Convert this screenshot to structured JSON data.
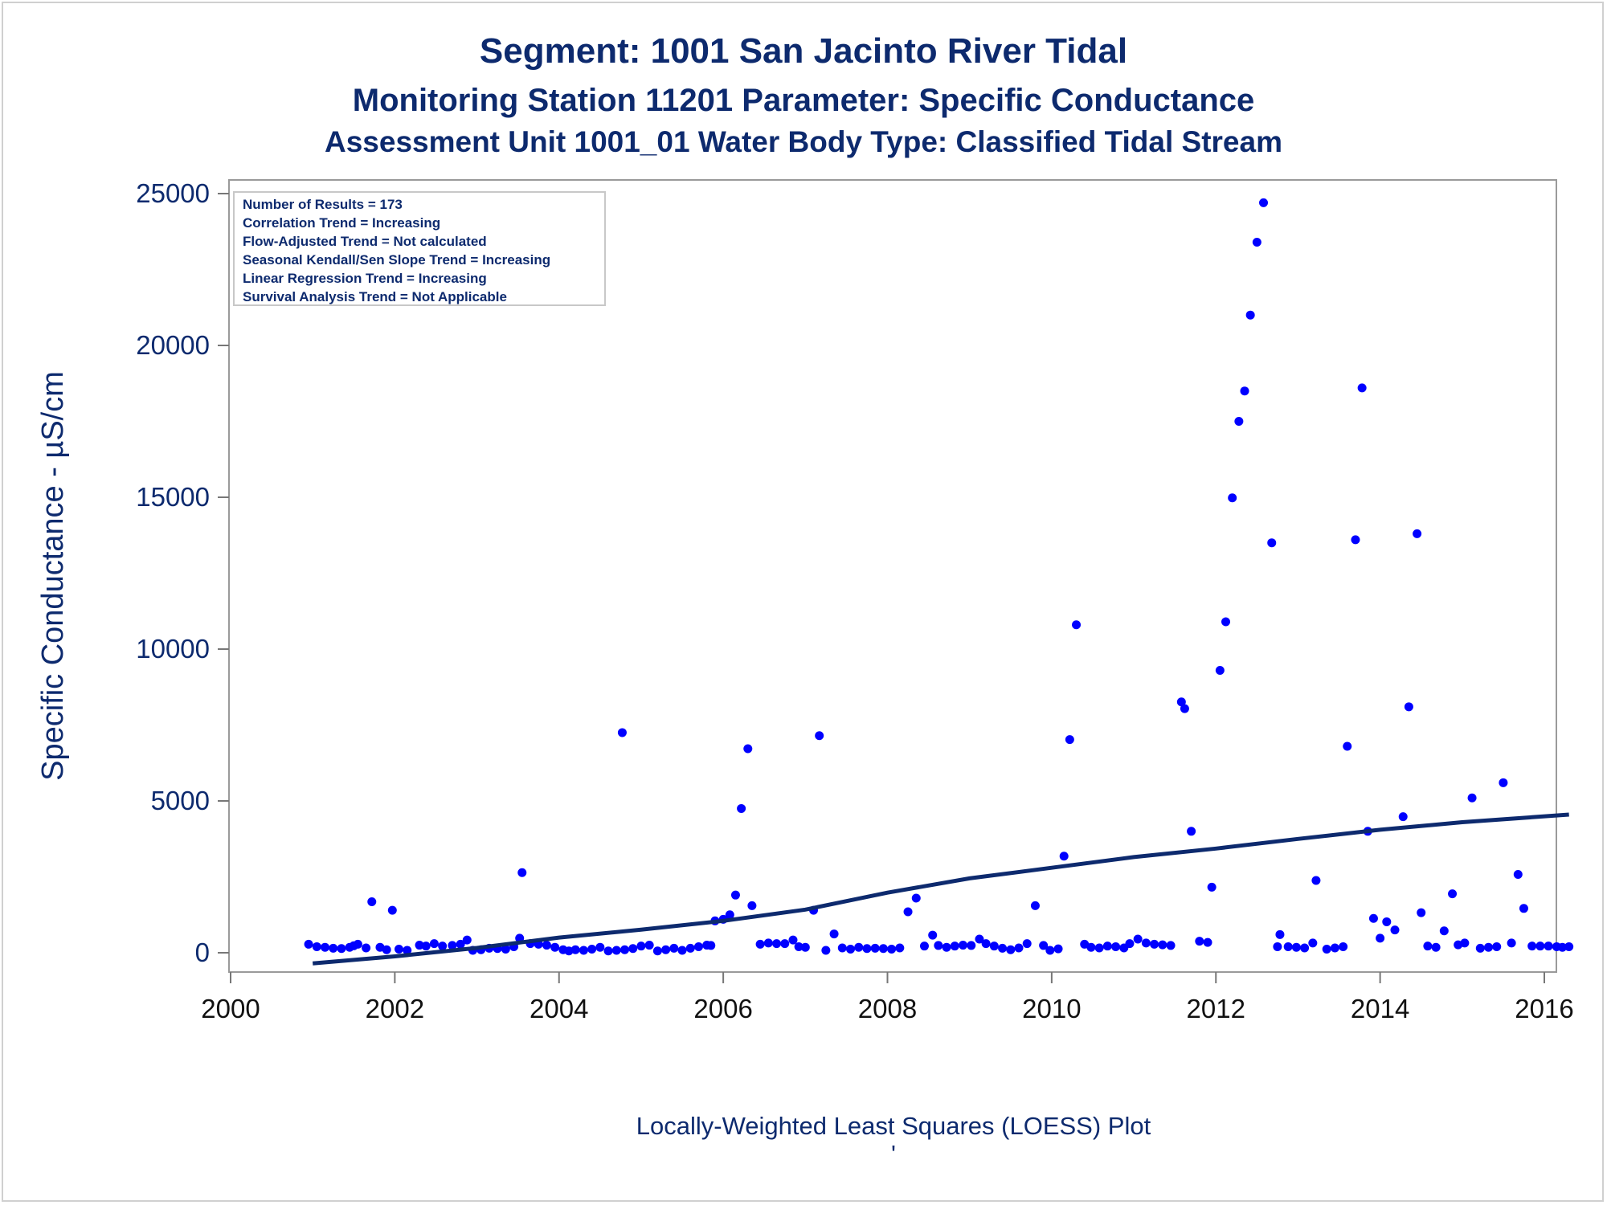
{
  "chart_data": {
    "type": "scatter",
    "title": "Segment: 1001  San Jacinto River Tidal",
    "subtitle": "Monitoring Station 11201 Parameter: Specific Conductance",
    "subtitle2": "Assessment Unit 1001_01   Water Body Type: Classified Tidal Stream",
    "ylabel": "Specific Conductance -  µS/cm",
    "xlabel": "",
    "footnote": "Locally-Weighted Least Squares (LOESS) Plot",
    "footnote2": "'",
    "xlim": [
      2000,
      2016
    ],
    "ylim": [
      -600,
      25500
    ],
    "x_ticks": [
      2000,
      2002,
      2004,
      2006,
      2008,
      2010,
      2012,
      2014,
      2016
    ],
    "y_ticks": [
      0,
      5000,
      10000,
      15000,
      20000,
      25000
    ],
    "grid": false,
    "legend": "none",
    "inset_text": [
      "Number of Results = 173",
      "Correlation Trend = Increasing",
      "Flow-Adjusted Trend = Not calculated",
      "Seasonal Kendall/Sen Slope Trend = Increasing",
      "Linear Regression Trend = Increasing",
      "Survival Analysis Trend = Not Applicable"
    ],
    "inset_position": "top-left",
    "point_color": "#0000ff",
    "line_color": "#0d2a6e",
    "series": [
      {
        "type": "scatter",
        "points": [
          [
            2000.95,
            280
          ],
          [
            2001.05,
            200
          ],
          [
            2001.15,
            180
          ],
          [
            2001.25,
            150
          ],
          [
            2001.35,
            140
          ],
          [
            2001.45,
            180
          ],
          [
            2001.55,
            280
          ],
          [
            2001.65,
            160
          ],
          [
            2001.72,
            1680
          ],
          [
            2001.82,
            180
          ],
          [
            2001.9,
            100
          ],
          [
            2001.97,
            1400
          ],
          [
            2002.05,
            120
          ],
          [
            2002.15,
            80
          ],
          [
            2002.3,
            250
          ],
          [
            2002.38,
            220
          ],
          [
            2002.48,
            300
          ],
          [
            2002.58,
            220
          ],
          [
            2002.7,
            240
          ],
          [
            2002.8,
            280
          ],
          [
            2002.88,
            420
          ],
          [
            2002.95,
            80
          ],
          [
            2003.05,
            100
          ],
          [
            2003.15,
            150
          ],
          [
            2003.25,
            140
          ],
          [
            2003.35,
            120
          ],
          [
            2003.45,
            200
          ],
          [
            2003.52,
            480
          ],
          [
            2003.55,
            2640
          ],
          [
            2003.65,
            300
          ],
          [
            2003.75,
            280
          ],
          [
            2003.85,
            250
          ],
          [
            2003.95,
            180
          ],
          [
            2004.05,
            100
          ],
          [
            2004.12,
            60
          ],
          [
            2004.2,
            100
          ],
          [
            2004.3,
            80
          ],
          [
            2004.4,
            120
          ],
          [
            2004.5,
            180
          ],
          [
            2004.6,
            60
          ],
          [
            2004.7,
            80
          ],
          [
            2004.8,
            100
          ],
          [
            2004.9,
            140
          ],
          [
            2005.0,
            220
          ],
          [
            2004.77,
            7250
          ],
          [
            2005.1,
            250
          ],
          [
            2005.2,
            60
          ],
          [
            2005.3,
            100
          ],
          [
            2005.4,
            150
          ],
          [
            2005.5,
            80
          ],
          [
            2005.6,
            150
          ],
          [
            2005.7,
            200
          ],
          [
            2005.8,
            250
          ],
          [
            2005.9,
            1050
          ],
          [
            2006.0,
            1100
          ],
          [
            2006.08,
            1250
          ],
          [
            2006.15,
            1900
          ],
          [
            2006.22,
            4750
          ],
          [
            2006.3,
            6720
          ],
          [
            2006.35,
            1550
          ],
          [
            2006.45,
            280
          ],
          [
            2006.55,
            320
          ],
          [
            2006.65,
            300
          ],
          [
            2006.75,
            300
          ],
          [
            2006.85,
            420
          ],
          [
            2006.92,
            200
          ],
          [
            2007.0,
            180
          ],
          [
            2007.1,
            1400
          ],
          [
            2007.17,
            7150
          ],
          [
            2007.25,
            80
          ],
          [
            2007.35,
            620
          ],
          [
            2007.45,
            160
          ],
          [
            2007.55,
            120
          ],
          [
            2007.65,
            180
          ],
          [
            2007.75,
            140
          ],
          [
            2007.85,
            150
          ],
          [
            2007.95,
            140
          ],
          [
            2008.05,
            120
          ],
          [
            2008.15,
            160
          ],
          [
            2008.25,
            1350
          ],
          [
            2008.35,
            1800
          ],
          [
            2008.45,
            220
          ],
          [
            2008.55,
            580
          ],
          [
            2008.62,
            240
          ],
          [
            2008.72,
            180
          ],
          [
            2008.82,
            220
          ],
          [
            2008.92,
            250
          ],
          [
            2009.02,
            240
          ],
          [
            2009.12,
            450
          ],
          [
            2009.2,
            300
          ],
          [
            2009.3,
            220
          ],
          [
            2009.4,
            150
          ],
          [
            2009.5,
            100
          ],
          [
            2009.6,
            160
          ],
          [
            2009.7,
            300
          ],
          [
            2009.8,
            1550
          ],
          [
            2009.9,
            240
          ],
          [
            2009.98,
            80
          ],
          [
            2010.08,
            130
          ],
          [
            2010.15,
            3180
          ],
          [
            2010.22,
            7020
          ],
          [
            2010.3,
            10800
          ],
          [
            2010.4,
            280
          ],
          [
            2010.48,
            180
          ],
          [
            2010.58,
            160
          ],
          [
            2010.68,
            220
          ],
          [
            2010.78,
            200
          ],
          [
            2010.88,
            160
          ],
          [
            2010.95,
            300
          ],
          [
            2011.05,
            450
          ],
          [
            2011.15,
            320
          ],
          [
            2011.25,
            280
          ],
          [
            2011.35,
            260
          ],
          [
            2011.45,
            240
          ],
          [
            2011.58,
            8260
          ],
          [
            2011.62,
            8040
          ],
          [
            2011.7,
            4000
          ],
          [
            2011.8,
            380
          ],
          [
            2011.9,
            340
          ],
          [
            2011.95,
            2160
          ],
          [
            2012.05,
            9300
          ],
          [
            2012.12,
            10900
          ],
          [
            2012.2,
            14980
          ],
          [
            2012.28,
            17500
          ],
          [
            2012.35,
            18500
          ],
          [
            2012.42,
            21000
          ],
          [
            2012.5,
            23400
          ],
          [
            2012.58,
            24700
          ],
          [
            2012.68,
            13500
          ],
          [
            2012.78,
            600
          ],
          [
            2012.88,
            200
          ],
          [
            2012.98,
            180
          ],
          [
            2013.08,
            160
          ],
          [
            2013.18,
            320
          ],
          [
            2013.22,
            2380
          ],
          [
            2013.35,
            120
          ],
          [
            2013.45,
            160
          ],
          [
            2013.55,
            200
          ],
          [
            2013.6,
            6800
          ],
          [
            2013.7,
            13600
          ],
          [
            2013.78,
            18600
          ],
          [
            2013.85,
            4000
          ],
          [
            2013.92,
            1130
          ],
          [
            2014.0,
            480
          ],
          [
            2014.08,
            1020
          ],
          [
            2014.18,
            750
          ],
          [
            2014.28,
            4480
          ],
          [
            2014.35,
            8100
          ],
          [
            2014.45,
            13800
          ],
          [
            2014.5,
            1320
          ],
          [
            2014.58,
            220
          ],
          [
            2014.68,
            180
          ],
          [
            2014.78,
            720
          ],
          [
            2014.88,
            1940
          ],
          [
            2014.95,
            260
          ],
          [
            2015.03,
            320
          ],
          [
            2015.12,
            5100
          ],
          [
            2015.22,
            150
          ],
          [
            2015.32,
            180
          ],
          [
            2015.42,
            200
          ],
          [
            2015.5,
            5600
          ],
          [
            2015.6,
            320
          ],
          [
            2015.68,
            2580
          ],
          [
            2015.75,
            1460
          ],
          [
            2015.85,
            220
          ],
          [
            2015.95,
            220
          ],
          [
            2016.05,
            220
          ],
          [
            2016.15,
            200
          ],
          [
            2016.22,
            180
          ],
          [
            2016.3,
            200
          ],
          [
            2001.5,
            230
          ],
          [
            2005.85,
            240
          ],
          [
            2012.75,
            200
          ]
        ]
      },
      {
        "type": "line",
        "points": [
          [
            2001.0,
            -350
          ],
          [
            2002.0,
            -120
          ],
          [
            2003.0,
            160
          ],
          [
            2004.0,
            500
          ],
          [
            2005.0,
            760
          ],
          [
            2006.0,
            1050
          ],
          [
            2007.0,
            1420
          ],
          [
            2008.0,
            1980
          ],
          [
            2009.0,
            2450
          ],
          [
            2010.0,
            2800
          ],
          [
            2011.0,
            3150
          ],
          [
            2012.0,
            3430
          ],
          [
            2013.0,
            3750
          ],
          [
            2014.0,
            4050
          ],
          [
            2015.0,
            4300
          ],
          [
            2016.3,
            4550
          ]
        ]
      }
    ]
  }
}
